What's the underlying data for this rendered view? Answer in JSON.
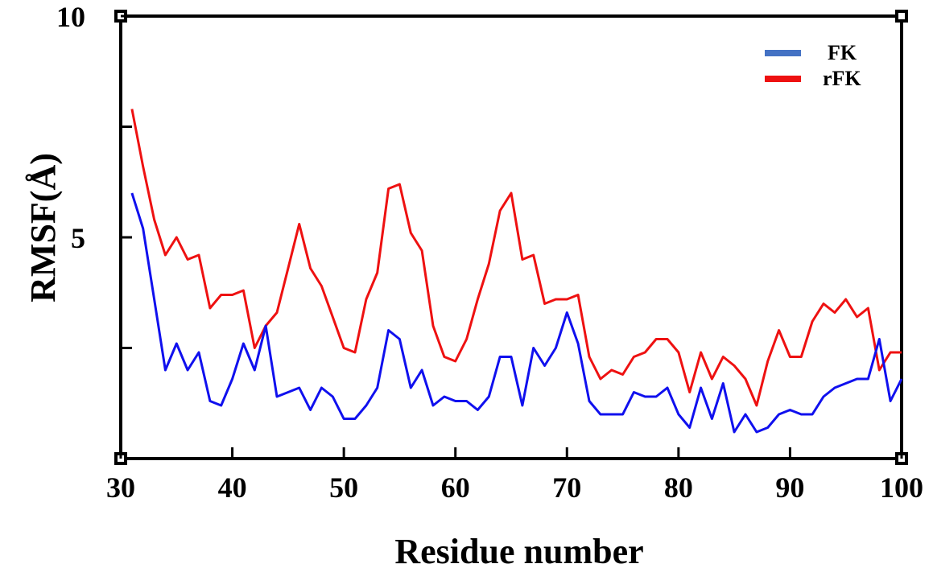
{
  "chart_data": {
    "type": "line",
    "xlabel": "Residue number",
    "ylabel": "RMSF(Å)",
    "xlim": [
      30,
      100
    ],
    "ylim": [
      0,
      10
    ],
    "x_ticks": [
      "30",
      "40",
      "50",
      "60",
      "70",
      "80",
      "90",
      "100"
    ],
    "y_ticks": [
      "5",
      "10"
    ],
    "grid": false,
    "legend_position": "top-right",
    "series": [
      {
        "name": "FK",
        "color": "#1010ee",
        "legend_color": "#4472c4",
        "x": [
          31,
          32,
          33,
          34,
          35,
          36,
          37,
          38,
          39,
          40,
          41,
          42,
          43,
          44,
          45,
          46,
          47,
          48,
          49,
          50,
          51,
          52,
          53,
          54,
          55,
          56,
          57,
          58,
          59,
          60,
          61,
          62,
          63,
          64,
          65,
          66,
          67,
          68,
          69,
          70,
          71,
          72,
          73,
          74,
          75,
          76,
          77,
          78,
          79,
          80,
          81,
          82,
          83,
          84,
          85,
          86,
          87,
          88,
          89,
          90,
          91,
          92,
          93,
          94,
          95,
          96,
          97,
          98,
          99,
          100
        ],
        "values": [
          6.0,
          5.2,
          3.6,
          2.0,
          2.6,
          2.0,
          2.4,
          1.3,
          1.2,
          1.8,
          2.6,
          2.0,
          3.0,
          1.4,
          1.5,
          1.6,
          1.1,
          1.6,
          1.4,
          0.9,
          0.9,
          1.2,
          1.6,
          2.9,
          2.7,
          1.6,
          2.0,
          1.2,
          1.4,
          1.3,
          1.3,
          1.1,
          1.4,
          2.3,
          2.3,
          1.2,
          2.5,
          2.1,
          2.5,
          3.3,
          2.6,
          1.3,
          1.0,
          1.0,
          1.0,
          1.5,
          1.4,
          1.4,
          1.6,
          1.0,
          0.7,
          1.6,
          0.9,
          1.7,
          0.6,
          1.0,
          0.6,
          0.7,
          1.0,
          1.1,
          1.0,
          1.0,
          1.4,
          1.6,
          1.7,
          1.8,
          1.8,
          2.7,
          1.3,
          1.8
        ]
      },
      {
        "name": "rFK",
        "color": "#ee1111",
        "legend_color": "#ee1111",
        "x": [
          31,
          32,
          33,
          34,
          35,
          36,
          37,
          38,
          39,
          40,
          41,
          42,
          43,
          44,
          45,
          46,
          47,
          48,
          49,
          50,
          51,
          52,
          53,
          54,
          55,
          56,
          57,
          58,
          59,
          60,
          61,
          62,
          63,
          64,
          65,
          66,
          67,
          68,
          69,
          70,
          71,
          72,
          73,
          74,
          75,
          76,
          77,
          78,
          79,
          80,
          81,
          82,
          83,
          84,
          85,
          86,
          87,
          88,
          89,
          90,
          91,
          92,
          93,
          94,
          95,
          96,
          97,
          98,
          99,
          100
        ],
        "values": [
          7.9,
          6.6,
          5.4,
          4.6,
          5.0,
          4.5,
          4.6,
          3.4,
          3.7,
          3.7,
          3.8,
          2.5,
          3.0,
          3.3,
          4.3,
          5.3,
          4.3,
          3.9,
          3.2,
          2.5,
          2.4,
          3.6,
          4.2,
          6.1,
          6.2,
          5.1,
          4.7,
          3.0,
          2.3,
          2.2,
          2.7,
          3.6,
          4.4,
          5.6,
          6.0,
          4.5,
          4.6,
          3.5,
          3.6,
          3.6,
          3.7,
          2.3,
          1.8,
          2.0,
          1.9,
          2.3,
          2.4,
          2.7,
          2.7,
          2.4,
          1.5,
          2.4,
          1.8,
          2.3,
          2.1,
          1.8,
          1.2,
          2.2,
          2.9,
          2.3,
          2.3,
          3.1,
          3.5,
          3.3,
          3.6,
          3.2,
          3.4,
          2.0,
          2.4,
          2.4
        ]
      }
    ]
  }
}
